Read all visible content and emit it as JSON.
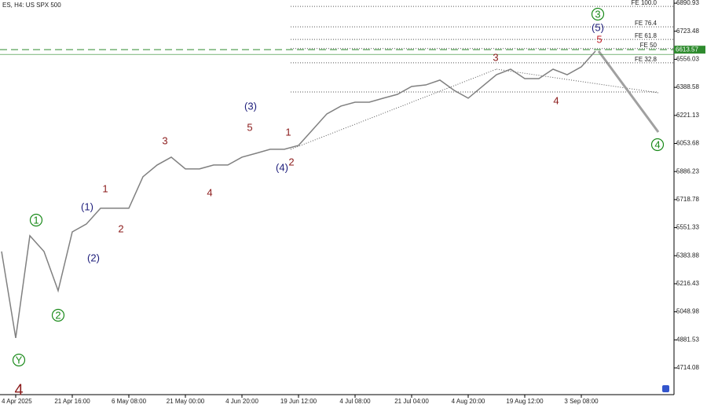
{
  "chart_data": {
    "type": "line",
    "title": "ES, H4:  US SPX 500",
    "categories": [
      null,
      "4 Apr 2025",
      null,
      null,
      null,
      "21 Apr 16:00",
      null,
      null,
      null,
      "6 May 08:00",
      null,
      null,
      null,
      "21 May 00:00",
      null,
      null,
      null,
      "4 Jun 20:00",
      null,
      null,
      null,
      "19 Jun 12:00",
      null,
      null,
      null,
      "4 Jul 08:00",
      null,
      null,
      null,
      "21 Jul 04:00",
      null,
      null,
      null,
      "4 Aug 20:00",
      null,
      null,
      null,
      "19 Aug 12:00",
      null,
      null,
      null,
      "3 Sep 08:00",
      null
    ],
    "values": [
      5409,
      4893,
      5503,
      5409,
      5175,
      5526,
      5573,
      5667,
      5667,
      5667,
      5855,
      5925,
      5972,
      5902,
      5902,
      5925,
      5925,
      5972,
      5995,
      6019,
      6019,
      6042,
      6136,
      6230,
      6277,
      6300,
      6300,
      6324,
      6347,
      6394,
      6403,
      6432,
      6371,
      6324,
      6394,
      6464,
      6497,
      6441,
      6441,
      6497,
      6464,
      6511,
      6605
    ],
    "color": "#808080",
    "ylim": [
      4564,
      6910
    ],
    "yticks": [
      6890.93,
      6723.48,
      6556.03,
      6388.58,
      6221.13,
      6053.68,
      5886.23,
      5718.78,
      5551.33,
      5383.88,
      5216.43,
      5048.98,
      4881.53,
      4714.08
    ],
    "current_price": 6613.57,
    "levels": [
      {
        "label": "FE 100.0",
        "value": 6872
      },
      {
        "label": "FE 76.4",
        "value": 6750
      },
      {
        "label": "FE 61.8",
        "value": 6675
      },
      {
        "label": "FE 50",
        "value": 6620
      },
      {
        "label": "FE 32.8",
        "value": 6535
      }
    ],
    "waves": [
      {
        "text": "1",
        "color": "#1a8a1a",
        "circled": true
      },
      {
        "text": "2",
        "color": "#1a8a1a",
        "circled": true
      },
      {
        "text": "3",
        "color": "#1a8a1a",
        "circled": true
      },
      {
        "text": "4",
        "color": "#1a8a1a",
        "circled": true
      },
      {
        "text": "Y",
        "color": "#1a8a1a",
        "circled": true
      },
      {
        "text": "(1)",
        "color": "#1c1c7a"
      },
      {
        "text": "(2)",
        "color": "#1c1c7a"
      },
      {
        "text": "(3)",
        "color": "#1c1c7a"
      },
      {
        "text": "(4)",
        "color": "#1c1c7a"
      },
      {
        "text": "(5)",
        "color": "#1c1c7a"
      },
      {
        "text": "1",
        "color": "#8b1a1a"
      },
      {
        "text": "2",
        "color": "#8b1a1a"
      },
      {
        "text": "3",
        "color": "#8b1a1a"
      },
      {
        "text": "4",
        "color": "#8b1a1a"
      },
      {
        "text": "5",
        "color": "#8b1a1a"
      },
      {
        "text": "1",
        "color": "#8b1a1a"
      },
      {
        "text": "2",
        "color": "#8b1a1a"
      },
      {
        "text": "3",
        "color": "#8b1a1a"
      },
      {
        "text": "4",
        "color": "#8b1a1a"
      },
      {
        "text": "5",
        "color": "#c0202a"
      },
      {
        "text": "4",
        "color": "#8b1a1a"
      }
    ]
  }
}
